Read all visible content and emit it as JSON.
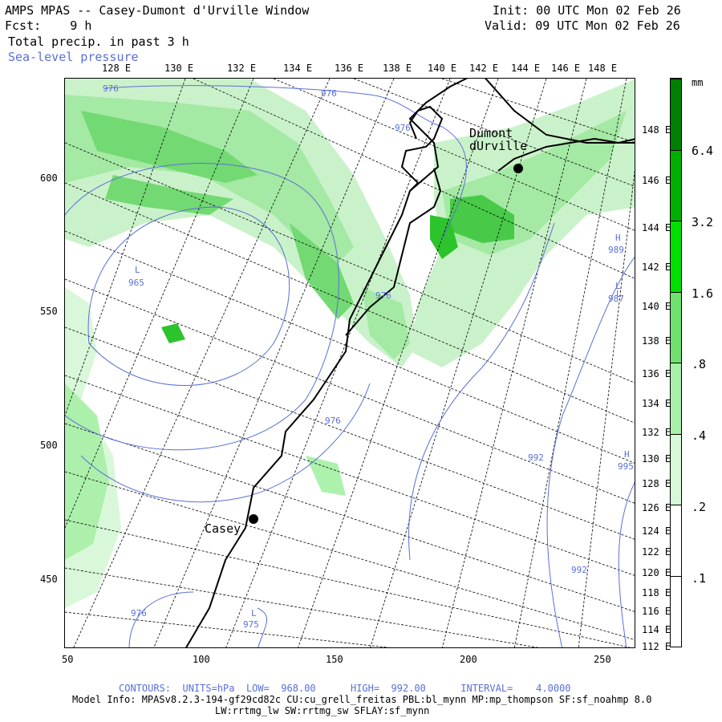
{
  "header": {
    "title": "AMPS MPAS -- Casey-Dumont d'Urville Window",
    "forecast": "Fcst:    9 h",
    "field": "Total precip. in past 3 h",
    "overlay": "Sea-level pressure",
    "init": "Init: 00 UTC Mon 02 Feb 26",
    "valid": "Valid: 09 UTC Mon 02 Feb 26"
  },
  "top_axis_labels": [
    "128 E",
    "130 E",
    "132 E",
    "134 E",
    "136 E",
    "138 E",
    "140 E",
    "142 E",
    "144 E",
    "146 E",
    "148 E"
  ],
  "left_axis_labels": [
    "600",
    "550",
    "500",
    "450"
  ],
  "bottom_axis_labels": [
    "50",
    "100",
    "150",
    "200",
    "250"
  ],
  "right_axis_labels": [
    "148 E",
    "146 E",
    "144 E",
    "142 E",
    "140 E",
    "138 E",
    "136 E",
    "134 E",
    "132 E",
    "130 E",
    "128 E",
    "126 E",
    "124 E",
    "122 E",
    "120 E",
    "118 E",
    "116 E",
    "114 E",
    "112 E"
  ],
  "colorbar": {
    "unit": "mm",
    "labels": [
      "6.4",
      "3.2",
      "1.6",
      ".8",
      ".4",
      ".2",
      ".1"
    ],
    "colors": [
      "#008000",
      "#00b000",
      "#00e000",
      "#70e070",
      "#a8f0a8",
      "#d8f8d8",
      "#ffffff",
      "#ffffff"
    ]
  },
  "places": {
    "dumont": "Dumont\ndUrville",
    "casey": "Casey"
  },
  "pressure_labels": [
    "976",
    "976",
    "976",
    "965",
    "976",
    "L",
    "L",
    "L",
    "H",
    "989",
    "L",
    "987",
    "992",
    "H",
    "995",
    "992",
    "976",
    "976",
    "975"
  ],
  "footer": {
    "contours": "CONTOURS:  UNITS=hPa  LOW=  968.00      HIGH=  992.00      INTERVAL=    4.0000",
    "model": "Model Info: MPASv8.2.3-194-gf29cd82c CU:cu_grell_freitas PBL:bl_mynn MP:mp_thompson SF:sf_noahmp 8.0",
    "physics": "LW:rrtmg_lw SW:rrtmg_sw SFLAY:sf_mynn"
  },
  "colors": {
    "contour": "#5a6fd8",
    "coast": "#000000"
  }
}
